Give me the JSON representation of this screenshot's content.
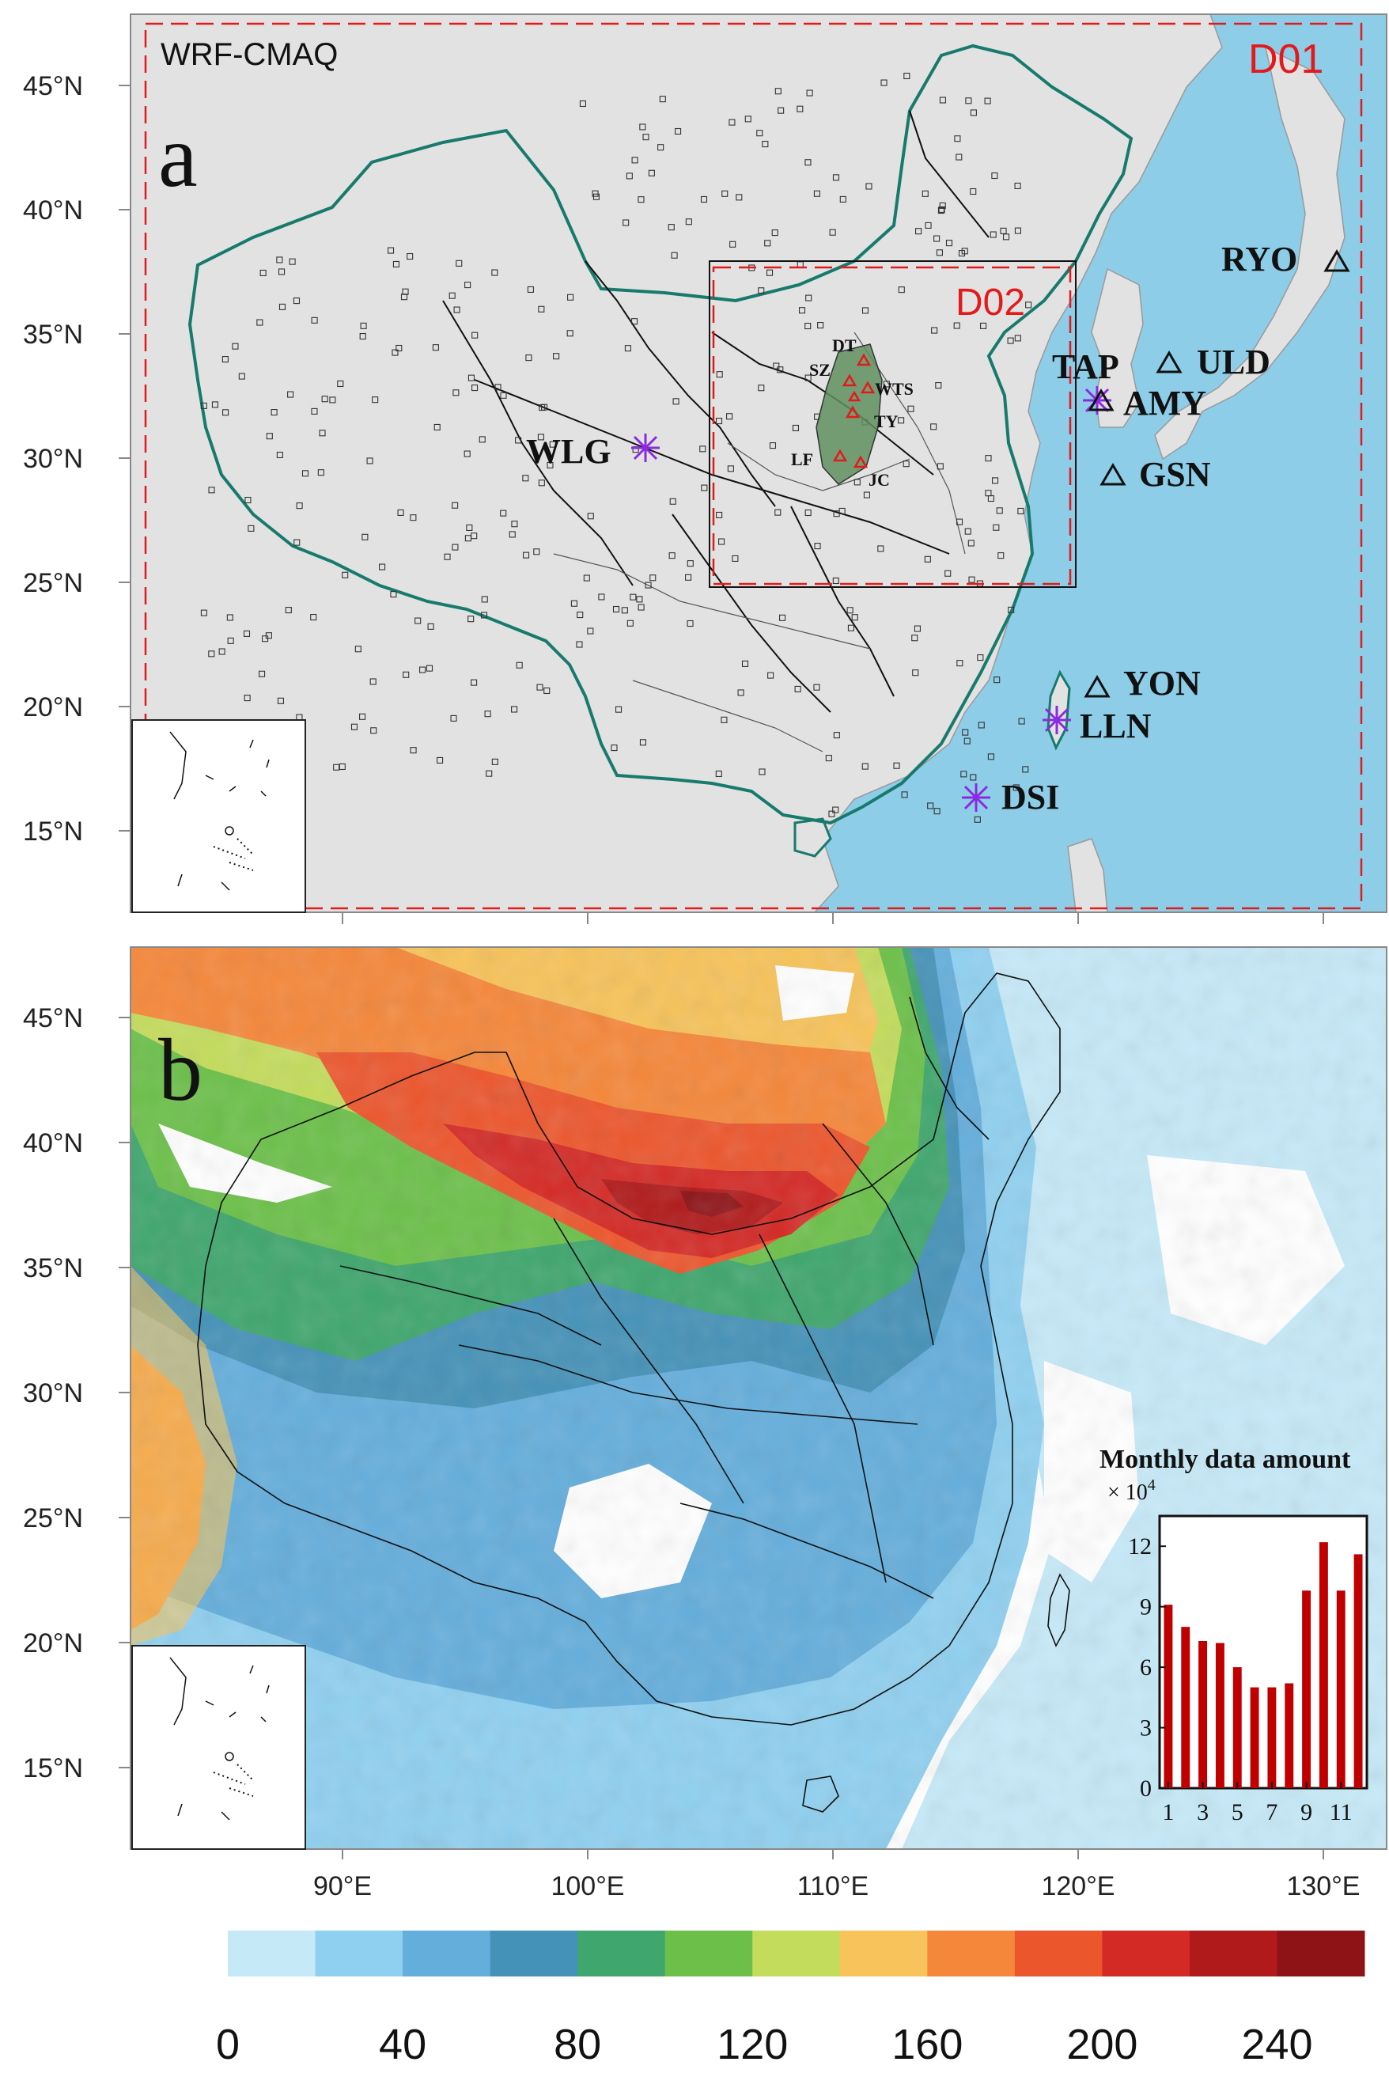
{
  "panel_a": {
    "letter": "a",
    "model_label": "WRF-CMAQ",
    "domain_outer": "D01",
    "domain_inner": "D02",
    "stations": {
      "WLG": "WLG",
      "TAP": "TAP",
      "AMY": "AMY",
      "ULD": "ULD",
      "GSN": "GSN",
      "RYO": "RYO",
      "YON": "YON",
      "LLN": "LLN",
      "DSI": "DSI"
    },
    "shanxi_sites": {
      "DT": "DT",
      "SZ": "SZ",
      "WTS": "WTS",
      "TY": "TY",
      "LF": "LF",
      "JC": "JC"
    },
    "colors": {
      "land": "#e2e2e2",
      "ocean": "#8dcde8",
      "china_border": "#177a6c",
      "domain": "#e31a1c",
      "shanxi": "#5f8f5f",
      "star": "#8a2be2"
    }
  },
  "panel_b": {
    "letter": "b",
    "inset_title": "Monthly data amount",
    "inset_scale": "× 10",
    "inset_scale_exp": "4"
  },
  "lat_labels": [
    "45°N",
    "40°N",
    "35°N",
    "30°N",
    "25°N",
    "20°N",
    "15°N"
  ],
  "lon_labels": [
    "90°E",
    "100°E",
    "110°E",
    "120°E",
    "130°E"
  ],
  "colorbar": {
    "colors": [
      "#c6e9f8",
      "#8fd0f0",
      "#64aedc",
      "#4592b8",
      "#3fa66d",
      "#6cc04a",
      "#c4dc5c",
      "#f7c35a",
      "#f5873a",
      "#ec562d",
      "#d42a26",
      "#b11a1b",
      "#8e1316"
    ],
    "labels": [
      "0",
      "40",
      "80",
      "120",
      "160",
      "200",
      "240"
    ]
  },
  "chart_data": {
    "type": "bar",
    "title": "Monthly data amount",
    "ylabel": "× 10^4",
    "categories": [
      1,
      2,
      3,
      4,
      5,
      6,
      7,
      8,
      9,
      10,
      11,
      12
    ],
    "x_tick_labels": [
      "1",
      "3",
      "5",
      "7",
      "9",
      "11"
    ],
    "values": [
      9.1,
      8.0,
      7.3,
      7.2,
      6.0,
      5.0,
      5.0,
      5.2,
      9.8,
      12.2,
      9.8,
      11.6
    ],
    "y_ticks": [
      "0",
      "3",
      "6",
      "9",
      "12"
    ],
    "ylim": [
      0,
      13.5
    ],
    "color": "#c00000"
  }
}
